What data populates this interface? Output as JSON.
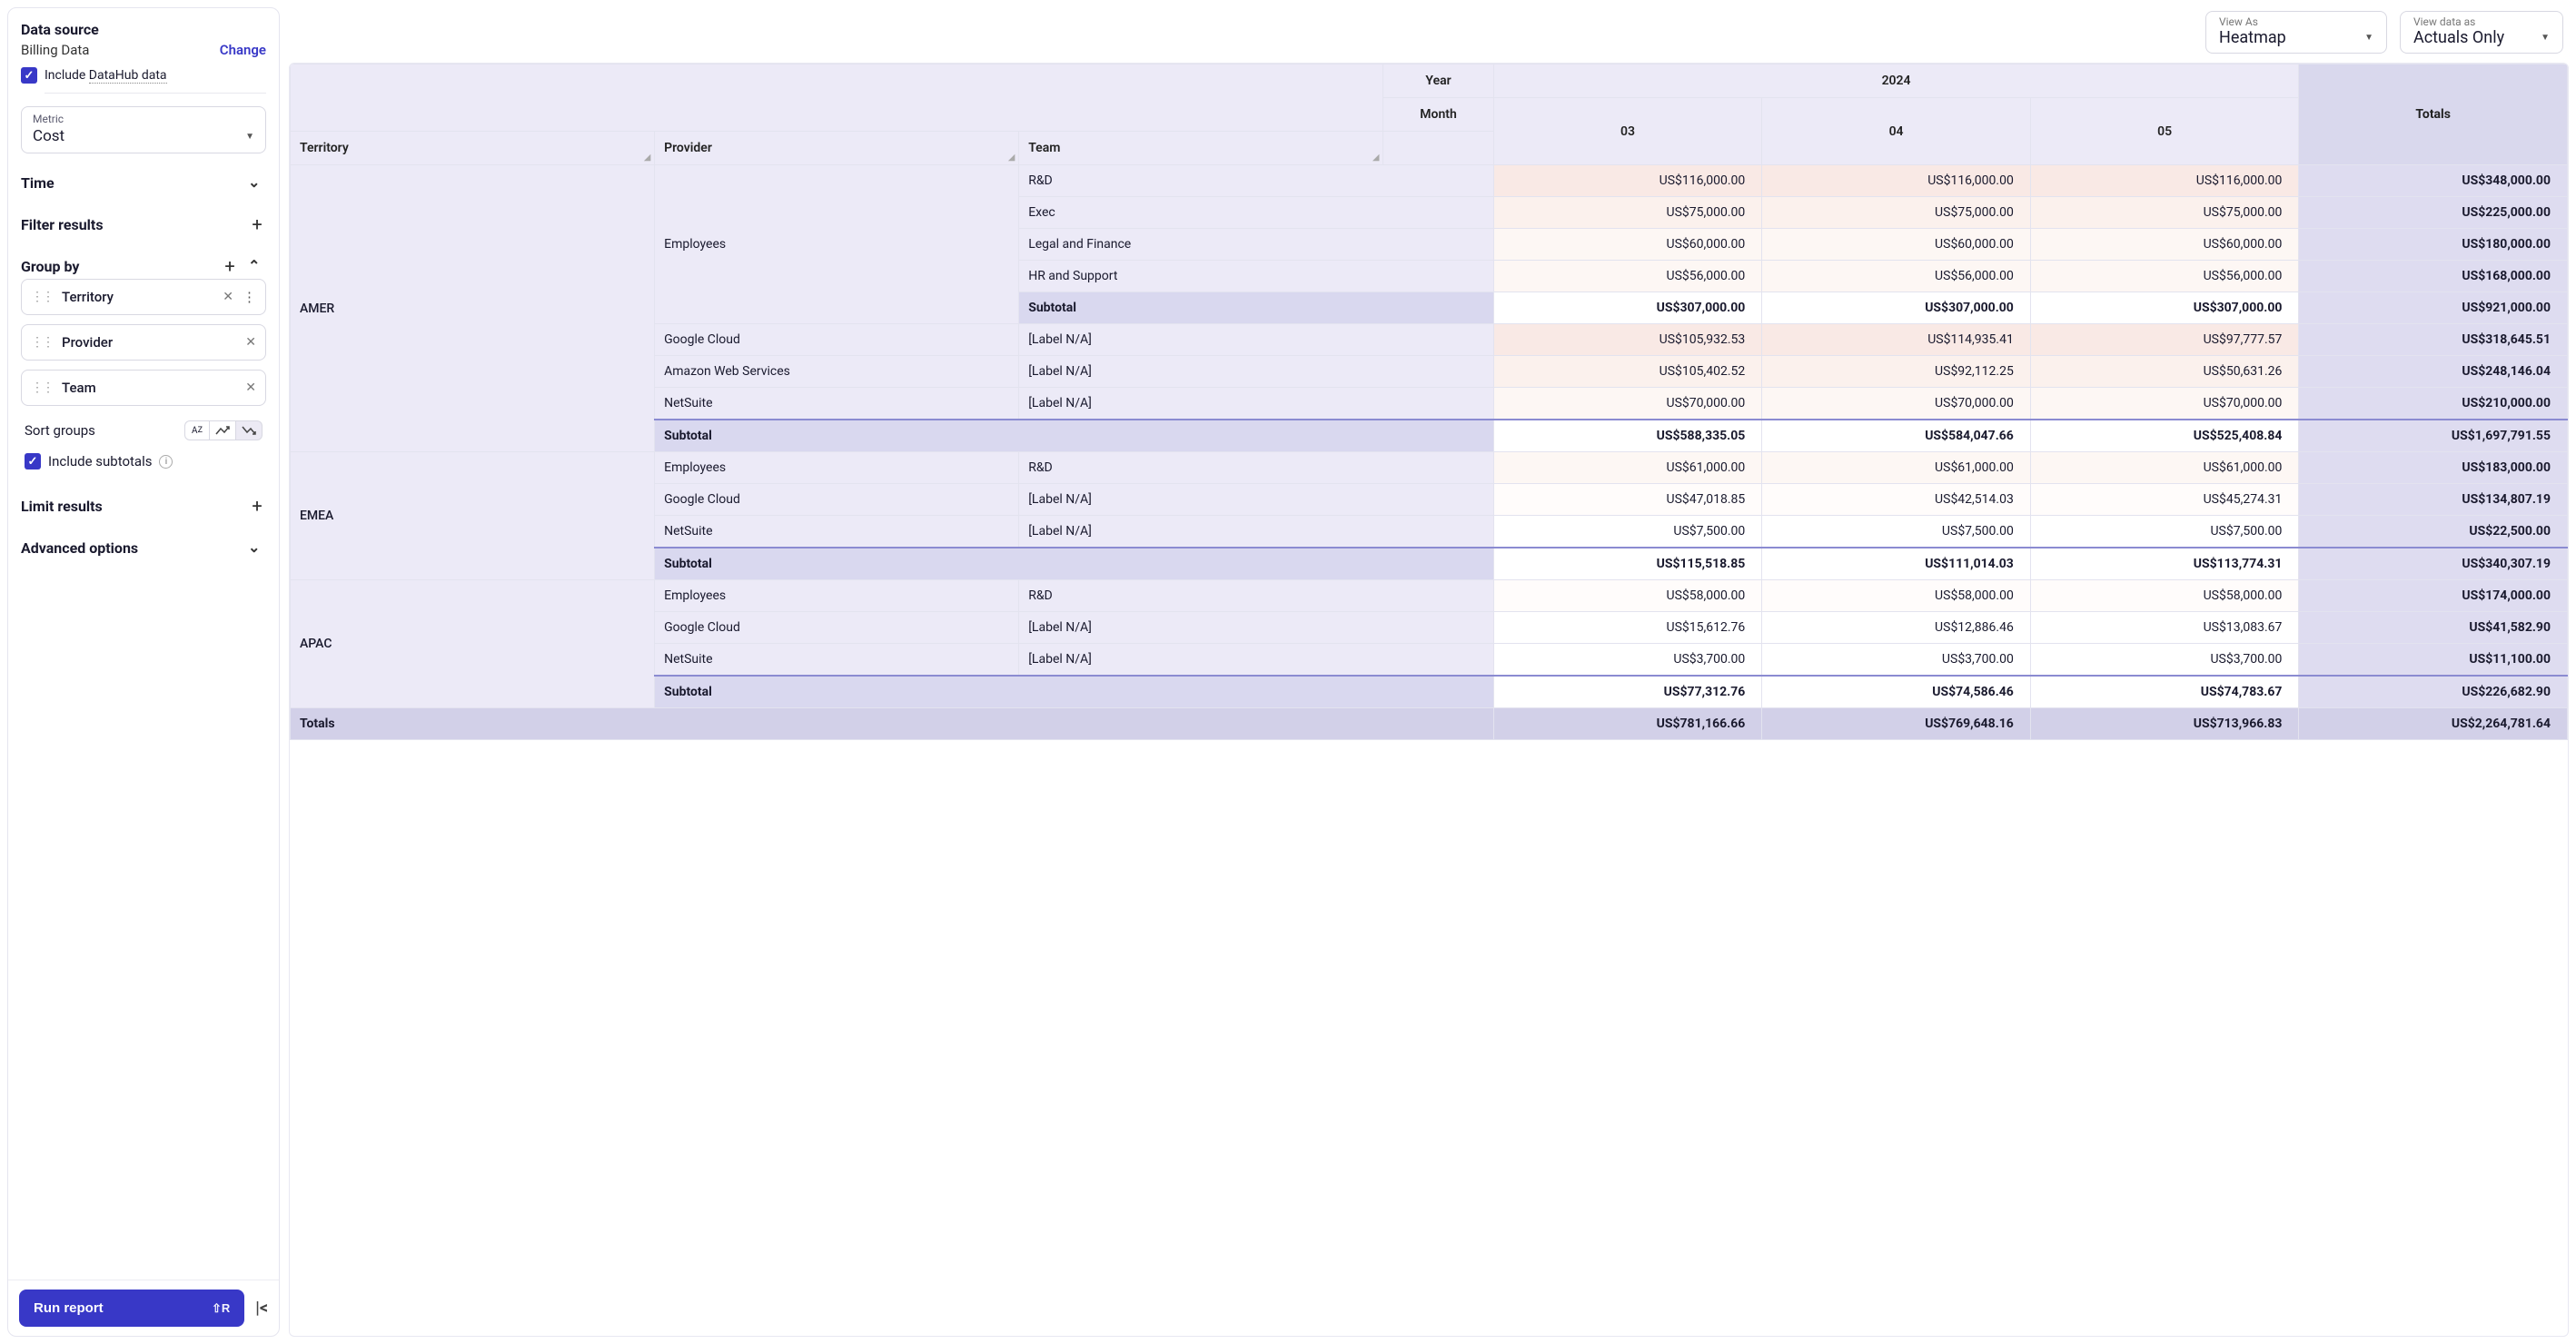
{
  "sidebar": {
    "data_source": {
      "title": "Data source",
      "name": "Billing Data",
      "change": "Change",
      "include_checkbox_label": "Include",
      "include_checkbox_suffix": "DataHub data"
    },
    "metric": {
      "label": "Metric",
      "value": "Cost"
    },
    "time": {
      "title": "Time"
    },
    "filter": {
      "title": "Filter results"
    },
    "group": {
      "title": "Group by",
      "items": [
        "Territory",
        "Provider",
        "Team"
      ],
      "sort_label": "Sort groups",
      "include_subtotals": "Include subtotals"
    },
    "limit": {
      "title": "Limit results"
    },
    "advanced": {
      "title": "Advanced options"
    },
    "run_button": "Run report",
    "run_shortcut": "⇧R"
  },
  "controls": {
    "view_as": {
      "label": "View As",
      "value": "Heatmap"
    },
    "view_data_as": {
      "label": "View data as",
      "value": "Actuals Only"
    }
  },
  "table": {
    "dim_headers": [
      "Territory",
      "Provider",
      "Team"
    ],
    "year_label": "Year",
    "year_value": "2024",
    "month_label": "Month",
    "months": [
      "03",
      "04",
      "05"
    ],
    "totals_label": "Totals",
    "subtotal_label": "Subtotal",
    "label_na": "[Label N/A]",
    "rows": [
      {
        "territory": "AMER",
        "groups": [
          {
            "provider": "Employees",
            "lines": [
              {
                "team": "R&D",
                "v": [
                  "US$116,000.00",
                  "US$116,000.00",
                  "US$116,000.00"
                ],
                "t": "US$348,000.00",
                "heat": "heat1"
              },
              {
                "team": "Exec",
                "v": [
                  "US$75,000.00",
                  "US$75,000.00",
                  "US$75,000.00"
                ],
                "t": "US$225,000.00",
                "heat": "heat2"
              },
              {
                "team": "Legal and Finance",
                "v": [
                  "US$60,000.00",
                  "US$60,000.00",
                  "US$60,000.00"
                ],
                "t": "US$180,000.00",
                "heat": "heat3"
              },
              {
                "team": "HR and Support",
                "v": [
                  "US$56,000.00",
                  "US$56,000.00",
                  "US$56,000.00"
                ],
                "t": "US$168,000.00",
                "heat": "heat3"
              }
            ],
            "subtotal": {
              "v": [
                "US$307,000.00",
                "US$307,000.00",
                "US$307,000.00"
              ],
              "t": "US$921,000.00"
            }
          },
          {
            "provider": "Google Cloud",
            "lines": [
              {
                "team": "[Label N/A]",
                "v": [
                  "US$105,932.53",
                  "US$114,935.41",
                  "US$97,777.57"
                ],
                "t": "US$318,645.51",
                "heat": "heat1"
              }
            ]
          },
          {
            "provider": "Amazon Web Services",
            "lines": [
              {
                "team": "[Label N/A]",
                "v": [
                  "US$105,402.52",
                  "US$92,112.25",
                  "US$50,631.26"
                ],
                "t": "US$248,146.04",
                "heat": "heat2"
              }
            ]
          },
          {
            "provider": "NetSuite",
            "lines": [
              {
                "team": "[Label N/A]",
                "v": [
                  "US$70,000.00",
                  "US$70,000.00",
                  "US$70,000.00"
                ],
                "t": "US$210,000.00",
                "heat": "heat3"
              }
            ]
          }
        ],
        "subtotal": {
          "v": [
            "US$588,335.05",
            "US$584,047.66",
            "US$525,408.84"
          ],
          "t": "US$1,697,791.55"
        }
      },
      {
        "territory": "EMEA",
        "groups": [
          {
            "provider": "Employees",
            "lines": [
              {
                "team": "R&D",
                "v": [
                  "US$61,000.00",
                  "US$61,000.00",
                  "US$61,000.00"
                ],
                "t": "US$183,000.00",
                "heat": "heat3"
              }
            ]
          },
          {
            "provider": "Google Cloud",
            "lines": [
              {
                "team": "[Label N/A]",
                "v": [
                  "US$47,018.85",
                  "US$42,514.03",
                  "US$45,274.31"
                ],
                "t": "US$134,807.19",
                "heat": "heat4"
              }
            ]
          },
          {
            "provider": "NetSuite",
            "lines": [
              {
                "team": "[Label N/A]",
                "v": [
                  "US$7,500.00",
                  "US$7,500.00",
                  "US$7,500.00"
                ],
                "t": "US$22,500.00",
                "heat": ""
              }
            ]
          }
        ],
        "subtotal": {
          "v": [
            "US$115,518.85",
            "US$111,014.03",
            "US$113,774.31"
          ],
          "t": "US$340,307.19"
        }
      },
      {
        "territory": "APAC",
        "groups": [
          {
            "provider": "Employees",
            "lines": [
              {
                "team": "R&D",
                "v": [
                  "US$58,000.00",
                  "US$58,000.00",
                  "US$58,000.00"
                ],
                "t": "US$174,000.00",
                "heat": "heat4"
              }
            ]
          },
          {
            "provider": "Google Cloud",
            "lines": [
              {
                "team": "[Label N/A]",
                "v": [
                  "US$15,612.76",
                  "US$12,886.46",
                  "US$13,083.67"
                ],
                "t": "US$41,582.90",
                "heat": ""
              }
            ]
          },
          {
            "provider": "NetSuite",
            "lines": [
              {
                "team": "[Label N/A]",
                "v": [
                  "US$3,700.00",
                  "US$3,700.00",
                  "US$3,700.00"
                ],
                "t": "US$11,100.00",
                "heat": ""
              }
            ]
          }
        ],
        "subtotal": {
          "v": [
            "US$77,312.76",
            "US$74,586.46",
            "US$74,783.67"
          ],
          "t": "US$226,682.90"
        }
      }
    ],
    "grand_totals": {
      "label": "Totals",
      "v": [
        "US$781,166.66",
        "US$769,648.16",
        "US$713,966.83"
      ],
      "t": "US$2,264,781.64"
    }
  },
  "colors": {
    "primary": "#3838c7",
    "header_bg": "#eceaf7",
    "totals_bg": "#d9d8ed",
    "border": "#e3e3ef"
  }
}
